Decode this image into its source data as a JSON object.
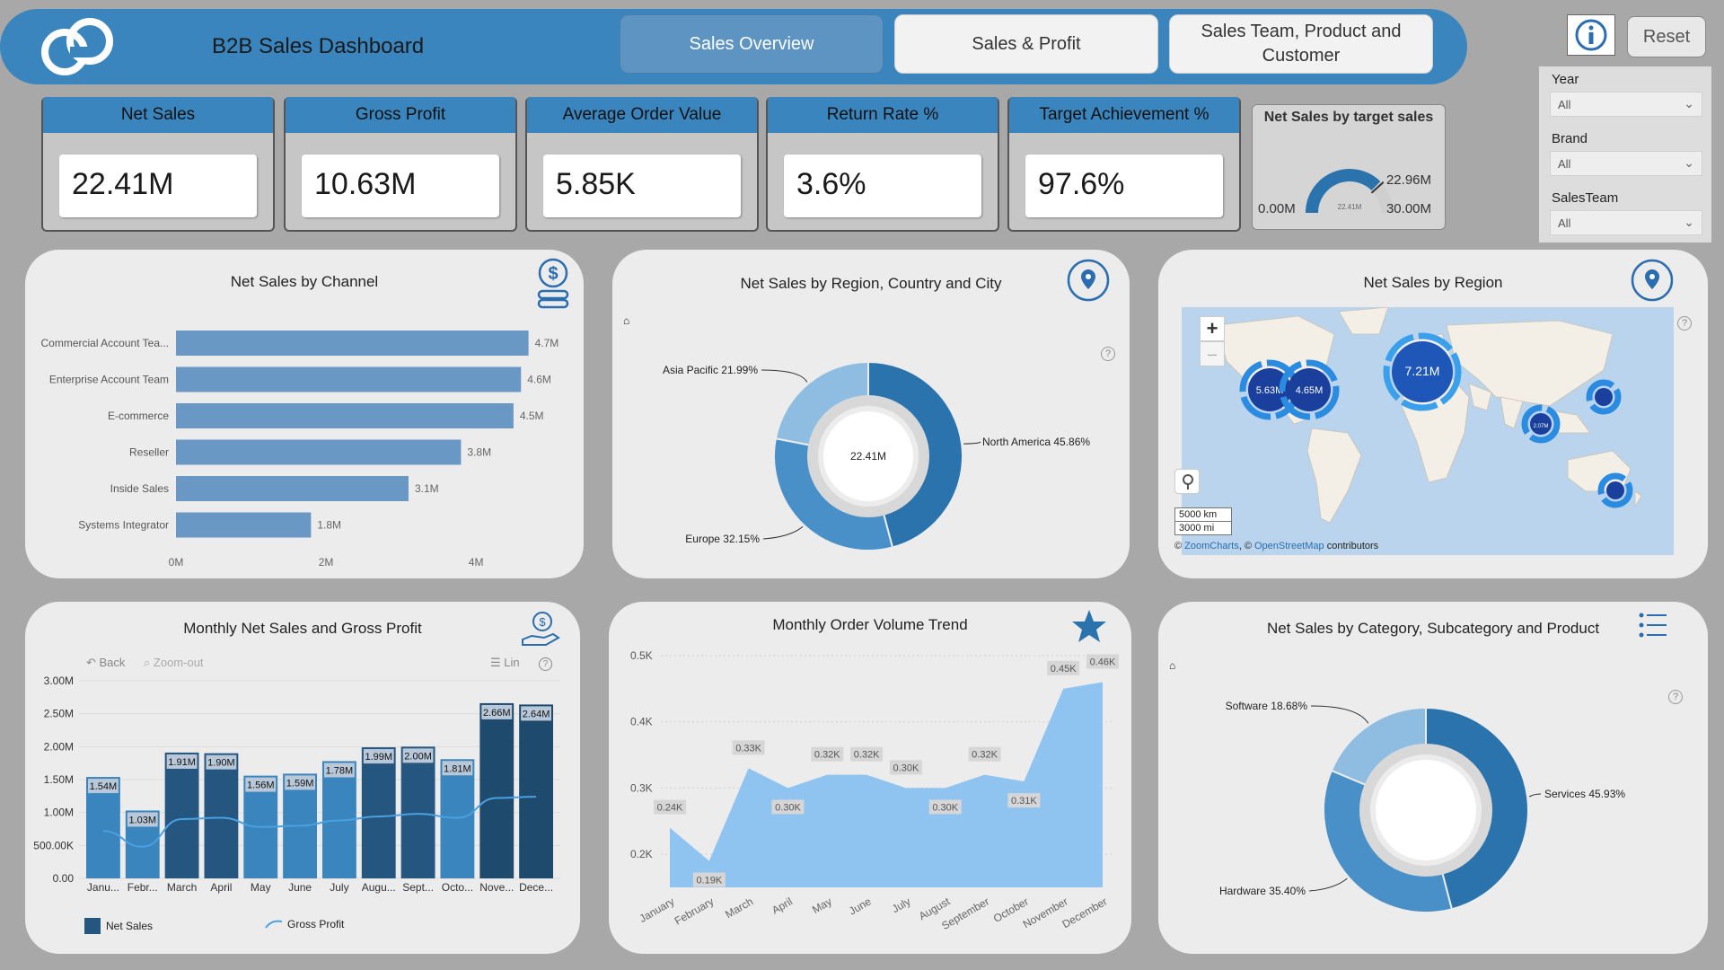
{
  "header": {
    "title": "B2B Sales Dashboard",
    "tabs": [
      {
        "label": "Sales Overview",
        "active": true
      },
      {
        "label": "Sales & Profit",
        "active": false
      },
      {
        "label": "Sales Team, Product and Customer",
        "active": false
      }
    ],
    "reset_label": "Reset",
    "info_icon": "info-icon",
    "accent": "#3a85bd"
  },
  "filters": [
    {
      "label": "Year",
      "value": "All"
    },
    {
      "label": "Brand",
      "value": "All"
    },
    {
      "label": "SalesTeam",
      "value": "All"
    }
  ],
  "kpis": [
    {
      "label": "Net Sales",
      "value": "22.41M"
    },
    {
      "label": "Gross Profit",
      "value": "10.63M"
    },
    {
      "label": "Average Order Value",
      "value": "5.85K"
    },
    {
      "label": "Return Rate %",
      "value": "3.6%"
    },
    {
      "label": "Target Achievement %",
      "value": "97.6%"
    }
  ],
  "gauge": {
    "title": "Net Sales by target sales",
    "min_label": "0.00M",
    "max_label": "30.00M",
    "target_label": "22.96M",
    "value_label": "22.41M",
    "value": 22.41,
    "target": 22.96,
    "max": 30
  },
  "panels": {
    "channel": {
      "title": "Net Sales by Channel",
      "chart_data": {
        "type": "bar",
        "categories": [
          "Commercial Account Tea...",
          "Enterprise Account Team",
          "E-commerce",
          "Reseller",
          "Inside Sales",
          "Systems Integrator"
        ],
        "values": [
          4.7,
          4.6,
          4.5,
          3.8,
          3.1,
          1.8
        ],
        "data_labels": [
          "4.7M",
          "4.6M",
          "4.5M",
          "3.8M",
          "3.1M",
          "1.8M"
        ],
        "xticks": [
          "0M",
          "2M",
          "4M"
        ],
        "xlim": [
          0,
          5.1
        ]
      }
    },
    "region_donut": {
      "title": "Net Sales by Region, Country and City",
      "center_label": "22.41M",
      "chart_data": {
        "type": "pie",
        "labels": [
          "North America",
          "Europe",
          "Asia Pacific"
        ],
        "values": [
          45.86,
          32.15,
          21.99
        ],
        "slice_labels": [
          "North America 45.86%",
          "Europe 32.15%",
          "Asia Pacific 21.99%"
        ],
        "colors": [
          "#2a73ad",
          "#4a90c8",
          "#8fbde2"
        ]
      }
    },
    "map": {
      "title": "Net Sales by Region",
      "zoom_in": "+",
      "zoom_out": "–",
      "scale_km": "5000 km",
      "scale_mi": "3000 mi",
      "attribution_prefix": "©",
      "attribution_zc": "ZoomCharts",
      "attribution_mid": ", ©",
      "attribution_osm": "OpenStreetMap",
      "attribution_suffix": "contributors",
      "bubbles": [
        {
          "label": "5.63M"
        },
        {
          "label": "4.65M"
        },
        {
          "label": "7.21M"
        },
        {
          "label": ""
        },
        {
          "label": "2.07M"
        },
        {
          "label": ""
        }
      ]
    },
    "monthly_sales": {
      "title": "Monthly Net Sales and Gross Profit",
      "back_label": "Back",
      "zoom_out_label": "Zoom-out",
      "lin_label": "Lin",
      "legend_net": "Net Sales",
      "legend_gross": "Gross Profit",
      "chart_data": {
        "type": "bar",
        "categories": [
          "Janu...",
          "Febr...",
          "March",
          "April",
          "May",
          "June",
          "July",
          "Augu...",
          "Sept...",
          "Octo...",
          "Nove...",
          "Dece..."
        ],
        "series": [
          {
            "name": "Net Sales",
            "values": [
              1.54,
              1.03,
              1.91,
              1.9,
              1.56,
              1.59,
              1.78,
              1.99,
              2.0,
              1.81,
              2.66,
              2.64
            ],
            "data_labels": [
              "1.54M",
              "1.03M",
              "1.91M",
              "1.90M",
              "1.56M",
              "1.59M",
              "1.78M",
              "1.99M",
              "2.00M",
              "1.81M",
              "2.66M",
              "2.64M"
            ]
          },
          {
            "name": "Gross Profit",
            "values": [
              0.72,
              0.48,
              0.9,
              0.92,
              0.78,
              0.8,
              0.88,
              0.94,
              0.98,
              0.92,
              1.22,
              1.24
            ]
          }
        ],
        "yticks": [
          "0.00",
          "500.00K",
          "1.00M",
          "1.50M",
          "2.00M",
          "2.50M",
          "3.00M"
        ],
        "ylim": [
          0,
          3.0
        ]
      }
    },
    "order_volume": {
      "title": "Monthly Order Volume Trend",
      "chart_data": {
        "type": "area",
        "categories": [
          "January",
          "February",
          "March",
          "April",
          "May",
          "June",
          "July",
          "August",
          "September",
          "October",
          "November",
          "December"
        ],
        "values": [
          0.24,
          0.19,
          0.33,
          0.3,
          0.32,
          0.32,
          0.3,
          0.3,
          0.32,
          0.31,
          0.45,
          0.46
        ],
        "data_labels": [
          "0.24K",
          "0.19K",
          "0.33K",
          "0.30K",
          "0.32K",
          "0.32K",
          "0.30K",
          "0.30K",
          "0.32K",
          "0.31K",
          "0.45K",
          "0.46K"
        ],
        "yticks": [
          "0.2K",
          "0.3K",
          "0.4K",
          "0.5K"
        ],
        "ylim": [
          0.15,
          0.5
        ]
      }
    },
    "category_donut": {
      "title": "Net Sales by Category, Subcategory and Product",
      "chart_data": {
        "type": "pie",
        "labels": [
          "Services",
          "Hardware",
          "Software"
        ],
        "values": [
          45.93,
          35.4,
          18.68
        ],
        "slice_labels": [
          "Services 45.93%",
          "Hardware 35.40%",
          "Software 18.68%"
        ],
        "colors": [
          "#2a73ad",
          "#4a90c8",
          "#8fbde2"
        ]
      }
    }
  }
}
